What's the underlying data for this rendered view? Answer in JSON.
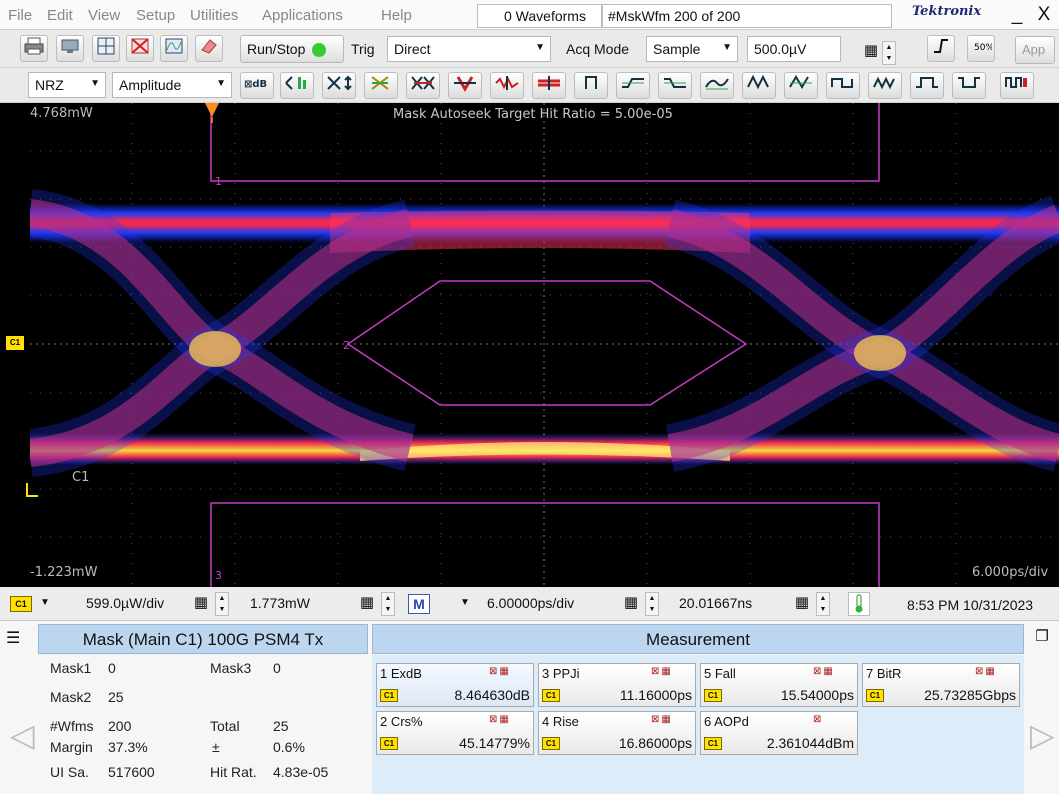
{
  "menu": {
    "items": [
      "File",
      "Edit",
      "View",
      "Setup",
      "Utilities",
      "Applications",
      "Help"
    ]
  },
  "header": {
    "waveforms": "0 Waveforms",
    "mskwfm": "#MskWfm  200 of 200",
    "brand": "Tektronix"
  },
  "window": {
    "minimize": "_",
    "close": "X"
  },
  "toolbar1": {
    "run_stop": "Run/Stop",
    "trig_label": "Trig",
    "trig_mode": "Direct",
    "acq_mode_label": "Acq Mode",
    "acq_mode": "Sample",
    "level": "500.0µV",
    "app": "App"
  },
  "toolbar2": {
    "signal_type": "NRZ",
    "measurement_type": "Amplitude"
  },
  "screen": {
    "top_value": "4.768mW",
    "bottom_value": "-1.223mW",
    "timebase": "6.000ps/div",
    "channel_label": "C1",
    "mask_status": "Mask Autoseek Target Hit Ratio = 5.00e-05",
    "mask_labels": [
      "1",
      "2",
      "3"
    ],
    "channel_marker": "C1"
  },
  "hscale": {
    "channel": "C1",
    "vscale": "599.0µW/div",
    "offset": "1.773mW",
    "math": "M",
    "tscale": "6.00000ps/div",
    "position": "20.01667ns",
    "datetime": "8:53 PM 10/31/2023"
  },
  "mask_panel": {
    "title": "Mask (Main  C1) 100G PSM4 Tx",
    "rows": [
      {
        "k1": "Mask1",
        "v1": "0",
        "k2": "Mask3",
        "v2": "0"
      },
      {
        "k1": "Mask2",
        "v1": "25",
        "k2": "",
        "v2": ""
      },
      {
        "k1": "#Wfms",
        "v1": "200",
        "k2": "Total",
        "v2": "25"
      },
      {
        "k1": "Margin",
        "v1": "37.3%",
        "k2": "±",
        "v2": "0.6%"
      },
      {
        "k1": "UI Sa.",
        "v1": "517600",
        "k2": "Hit Rat.",
        "v2": "4.83e-05"
      }
    ]
  },
  "measurement_panel": {
    "title": "Measurement",
    "items": [
      {
        "name": "1 ExdB",
        "value": "8.464630dB",
        "channel": "C1"
      },
      {
        "name": "3 PPJi",
        "value": "11.16000ps",
        "channel": "C1"
      },
      {
        "name": "5 Fall",
        "value": "15.54000ps",
        "channel": "C1"
      },
      {
        "name": "7 BitR",
        "value": "25.73285Gbps",
        "channel": "C1"
      },
      {
        "name": "2 Crs%",
        "value": "45.14779%",
        "channel": "C1"
      },
      {
        "name": "4 Rise",
        "value": "16.86000ps",
        "channel": "C1"
      },
      {
        "name": "6 AOPd",
        "value": "2.361044dBm",
        "channel": "C1"
      }
    ]
  }
}
